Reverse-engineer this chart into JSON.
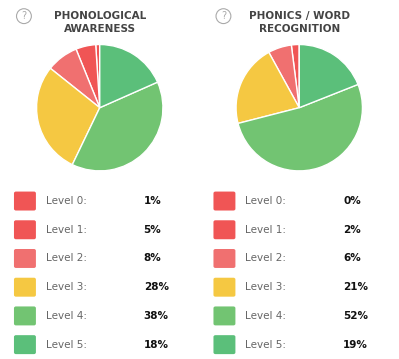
{
  "chart1_title": "PHONOLOGICAL\nAWARENESS",
  "chart2_title": "PHONICS / WORD\nRECOGNITION",
  "levels": [
    "Level 0",
    "Level 1",
    "Level 2",
    "Level 3",
    "Level 4",
    "Level 5"
  ],
  "colors": [
    "#F05555",
    "#F05555",
    "#F07070",
    "#F5C842",
    "#72C472",
    "#5BBF7A"
  ],
  "chart1_values": [
    1,
    5,
    8,
    28,
    38,
    18
  ],
  "chart2_values": [
    0,
    2,
    6,
    21,
    52,
    19
  ],
  "bg_color": "#FFFFFF",
  "title_color": "#444444",
  "legend_label_color": "#666666",
  "legend_value_color": "#111111",
  "question_mark_color": "#AAAAAA"
}
